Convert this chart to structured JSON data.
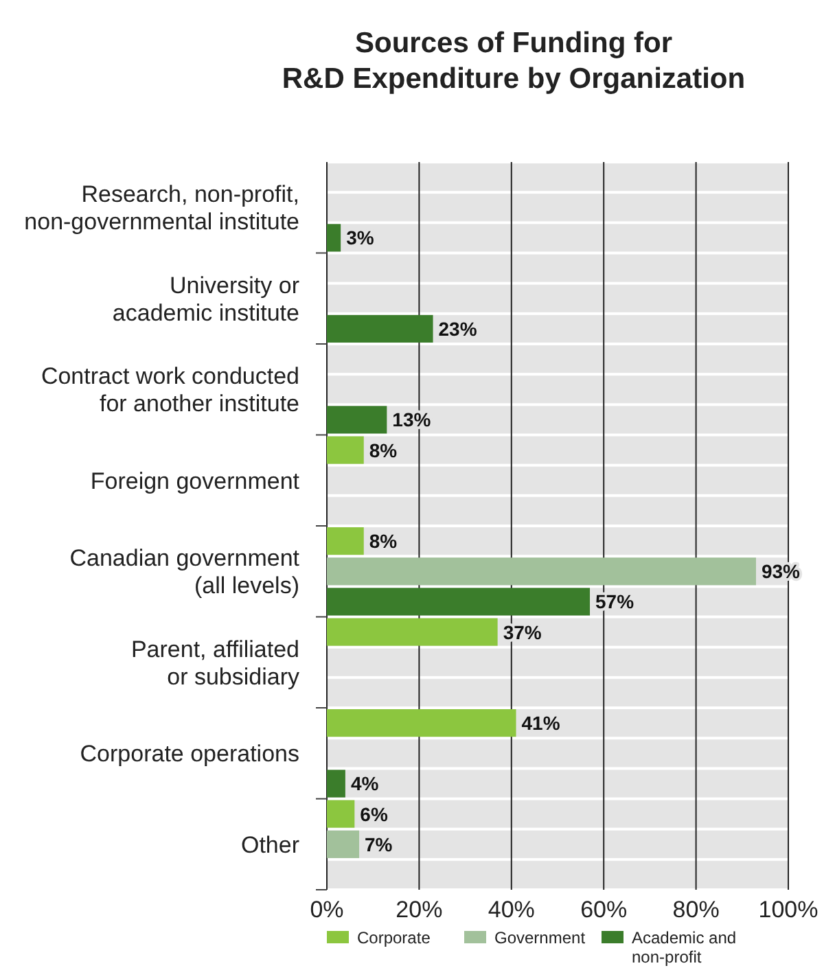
{
  "chart_data": {
    "type": "bar",
    "orientation": "horizontal",
    "title": "Sources of Funding for\nR&D Expenditure by Organization",
    "categories": [
      "Research, non-profit,\nnon-governmental institute",
      "University or\nacademic institute",
      "Contract work conducted\nfor another institute",
      "Foreign government",
      "Canadian government\n(all levels)",
      "Parent, affiliated\nor subsidiary",
      "Corporate operations",
      "Other"
    ],
    "series": [
      {
        "name": "Corporate",
        "color": "#8cc63f",
        "values": [
          null,
          null,
          null,
          8,
          8,
          37,
          41,
          6
        ],
        "value_labels": [
          null,
          null,
          null,
          "8%",
          "8%",
          "37%",
          "41%",
          "6%"
        ]
      },
      {
        "name": "Government",
        "color": "#a2c19b",
        "values": [
          null,
          null,
          null,
          null,
          93,
          null,
          null,
          7
        ],
        "value_labels": [
          null,
          null,
          null,
          null,
          "93%",
          null,
          null,
          "7%"
        ]
      },
      {
        "name": "Academic and\nnon-profit",
        "color": "#3b7d2b",
        "values": [
          3,
          23,
          13,
          null,
          57,
          null,
          4,
          null
        ],
        "value_labels": [
          "3%",
          "23%",
          "13%",
          null,
          "57%",
          null,
          "4%",
          null
        ]
      }
    ],
    "xlim": [
      0,
      100
    ],
    "xticks": [
      {
        "value": 0,
        "label": "0%"
      },
      {
        "value": 20,
        "label": "20%"
      },
      {
        "value": 40,
        "label": "40%"
      },
      {
        "value": 60,
        "label": "60%"
      },
      {
        "value": 80,
        "label": "80%"
      },
      {
        "value": 100,
        "label": "100%"
      }
    ],
    "grid": "x",
    "legend": "bottom"
  }
}
